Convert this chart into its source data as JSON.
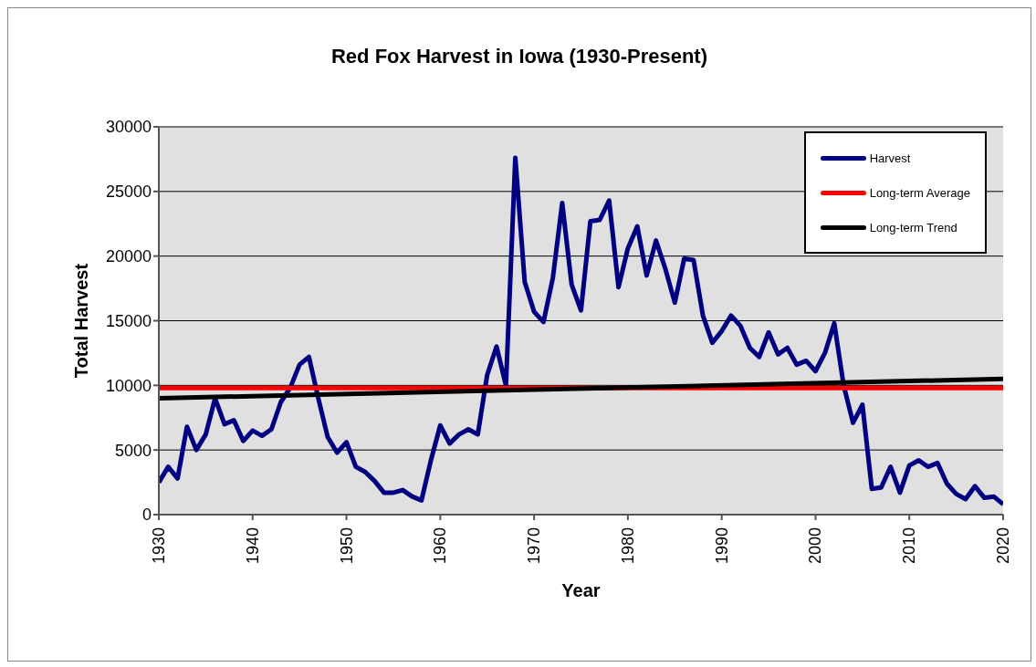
{
  "chart_data": {
    "type": "line",
    "title": "Red Fox Harvest in Iowa (1930-Present)",
    "xlabel": "Year",
    "ylabel": "Total Harvest",
    "x": [
      1930,
      1931,
      1932,
      1933,
      1934,
      1935,
      1936,
      1937,
      1938,
      1939,
      1940,
      1941,
      1942,
      1943,
      1944,
      1945,
      1946,
      1947,
      1948,
      1949,
      1950,
      1951,
      1952,
      1953,
      1954,
      1955,
      1956,
      1957,
      1958,
      1959,
      1960,
      1961,
      1962,
      1963,
      1964,
      1965,
      1966,
      1967,
      1968,
      1969,
      1970,
      1971,
      1972,
      1973,
      1974,
      1975,
      1976,
      1977,
      1978,
      1979,
      1980,
      1981,
      1982,
      1983,
      1984,
      1985,
      1986,
      1987,
      1988,
      1989,
      1990,
      1991,
      1992,
      1993,
      1994,
      1995,
      1996,
      1997,
      1998,
      1999,
      2000,
      2001,
      2002,
      2003,
      2004,
      2005,
      2006,
      2007,
      2008,
      2009,
      2010,
      2011,
      2012,
      2013,
      2014,
      2015,
      2016,
      2017,
      2018,
      2019,
      2020
    ],
    "series": [
      {
        "name": "Harvest",
        "color": "#000080",
        "values": [
          2500,
          3700,
          2800,
          6800,
          5000,
          6200,
          9000,
          7000,
          7300,
          5700,
          6500,
          6100,
          6600,
          8700,
          9800,
          11600,
          12200,
          9000,
          6000,
          4800,
          5600,
          3700,
          3300,
          2600,
          1700,
          1700,
          1900,
          1400,
          1100,
          4200,
          6900,
          5500,
          6200,
          6600,
          6200,
          10800,
          13000,
          10000,
          27600,
          18000,
          15700,
          14900,
          18300,
          24100,
          17800,
          15800,
          22700,
          22800,
          24300,
          17600,
          20600,
          22300,
          18500,
          21200,
          19000,
          16400,
          19800,
          19700,
          15400,
          13300,
          14200,
          15400,
          14600,
          12900,
          12200,
          14100,
          12400,
          12900,
          11600,
          11900,
          11100,
          12500,
          14800,
          10000,
          7100,
          8500,
          2000,
          2100,
          3700,
          1700,
          3800,
          4200,
          3700,
          4000,
          2400,
          1600,
          1200,
          2200,
          1300,
          1400,
          800
        ]
      },
      {
        "name": "Long-term Trend",
        "color": "#000000",
        "x": [
          1930,
          2020
        ],
        "values": [
          9000,
          10500
        ]
      }
    ],
    "ref_lines": [
      {
        "axis": "y",
        "value": 9800,
        "label": "Long-term Average",
        "color": "#ff0000",
        "line_style": "solid"
      }
    ],
    "xlim": [
      1930,
      2020
    ],
    "xticks": [
      1930,
      1940,
      1950,
      1960,
      1970,
      1980,
      1990,
      2000,
      2010,
      2020
    ],
    "ylim": [
      0,
      30000
    ],
    "yticks": [
      0,
      5000,
      10000,
      15000,
      20000,
      25000,
      30000
    ],
    "grid": "y",
    "legend": "top right",
    "marker": "none",
    "line_style": "solid"
  }
}
